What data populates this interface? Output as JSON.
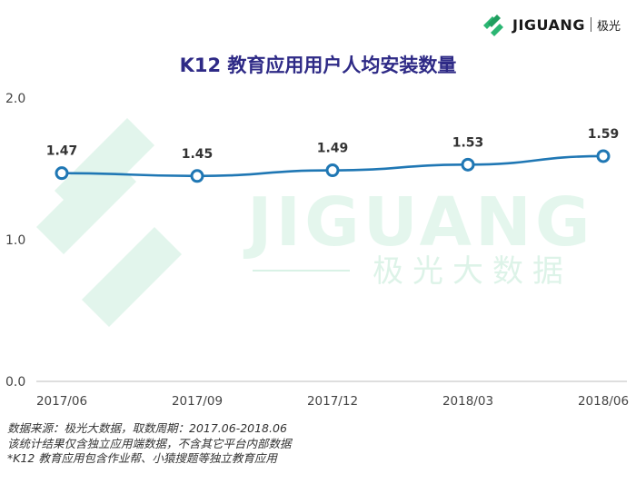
{
  "logo": {
    "brand": "JIGUANG",
    "cn": "极光",
    "icon": "jiguang-logo-icon"
  },
  "watermark": {
    "brand": "JIGUANG",
    "cn": "极光大数据"
  },
  "chart_data": {
    "type": "line",
    "title": "K12 教育应用用户人均安装数量",
    "categories": [
      "2017/06",
      "2017/09",
      "2017/12",
      "2018/03",
      "2018/06"
    ],
    "series": [
      {
        "values": [
          1.47,
          1.45,
          1.49,
          1.53,
          1.59
        ],
        "labels": [
          "1.47",
          "1.45",
          "1.49",
          "1.53",
          "1.59"
        ]
      }
    ],
    "ylim": [
      0,
      2.0
    ],
    "yticks": [
      "0.0",
      "1.0",
      "2.0"
    ],
    "xlabel": "",
    "ylabel": "",
    "grid": false,
    "line_color": "#1f77b4"
  },
  "footer": {
    "lines": [
      "数据来源：极光大数据，取数周期：2017.06-2018.06",
      "该统计结果仅含独立应用端数据，不含其它平台内部数据",
      " *K12 教育应用包含作业帮、小猿搜题等独立教育应用"
    ]
  }
}
